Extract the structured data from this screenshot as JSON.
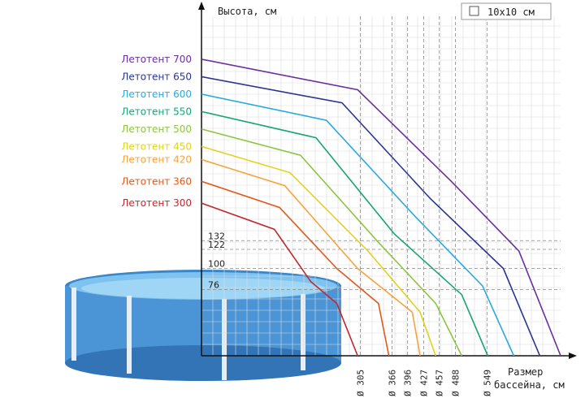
{
  "chart_data": {
    "type": "line",
    "ylabel": "Высота, см",
    "xlabel_line1": "Размер",
    "xlabel_line2": "бассейна, см",
    "scale_note": "10x10 см",
    "y_ticks": [
      {
        "label": "132",
        "value": 132
      },
      {
        "label": "122",
        "value": 122
      },
      {
        "label": "100",
        "value": 100
      },
      {
        "label": "76",
        "value": 76
      }
    ],
    "x_ticks": [
      {
        "label": "Ø 305",
        "value": 305
      },
      {
        "label": "Ø 366",
        "value": 366
      },
      {
        "label": "Ø 396",
        "value": 396
      },
      {
        "label": "Ø 427",
        "value": 427
      },
      {
        "label": "Ø 457",
        "value": 457
      },
      {
        "label": "Ø 488",
        "value": 488
      },
      {
        "label": "Ø 549",
        "value": 549
      }
    ],
    "series": [
      {
        "name": "Летотент 700",
        "color": "#6b2fa0",
        "points": [
          [
            0,
            340
          ],
          [
            300,
            305
          ],
          [
            480,
            200
          ],
          [
            610,
            120
          ],
          [
            690,
            0
          ]
        ]
      },
      {
        "name": "Летотент 650",
        "color": "#283593",
        "points": [
          [
            0,
            320
          ],
          [
            270,
            290
          ],
          [
            440,
            180
          ],
          [
            580,
            100
          ],
          [
            650,
            0
          ]
        ]
      },
      {
        "name": "Летотент 600",
        "color": "#29a9e0",
        "points": [
          [
            0,
            300
          ],
          [
            240,
            270
          ],
          [
            410,
            160
          ],
          [
            540,
            80
          ],
          [
            600,
            0
          ]
        ]
      },
      {
        "name": "Летотент 550",
        "color": "#17a673",
        "points": [
          [
            0,
            280
          ],
          [
            220,
            250
          ],
          [
            370,
            140
          ],
          [
            500,
            70
          ],
          [
            550,
            0
          ]
        ]
      },
      {
        "name": "Летотент 500",
        "color": "#8cc63f",
        "points": [
          [
            0,
            260
          ],
          [
            190,
            230
          ],
          [
            340,
            130
          ],
          [
            450,
            60
          ],
          [
            500,
            0
          ]
        ]
      },
      {
        "name": "Летотент 450",
        "color": "#e0d21c",
        "points": [
          [
            0,
            240
          ],
          [
            170,
            210
          ],
          [
            320,
            120
          ],
          [
            420,
            50
          ],
          [
            450,
            0
          ]
        ]
      },
      {
        "name": "Летотент 420",
        "color": "#f7a33c",
        "points": [
          [
            0,
            225
          ],
          [
            160,
            195
          ],
          [
            300,
            100
          ],
          [
            405,
            50
          ],
          [
            420,
            0
          ]
        ]
      },
      {
        "name": "Летотент 360",
        "color": "#e05a1c",
        "points": [
          [
            0,
            200
          ],
          [
            150,
            170
          ],
          [
            260,
            100
          ],
          [
            340,
            60
          ],
          [
            360,
            0
          ]
        ]
      },
      {
        "name": "Летотент 300",
        "color": "#c0282d",
        "points": [
          [
            0,
            175
          ],
          [
            140,
            145
          ],
          [
            210,
            85
          ],
          [
            260,
            60
          ],
          [
            300,
            0
          ]
        ]
      }
    ],
    "xlim": [
      0,
      690
    ],
    "ylim": [
      0,
      380
    ],
    "grid": true
  }
}
